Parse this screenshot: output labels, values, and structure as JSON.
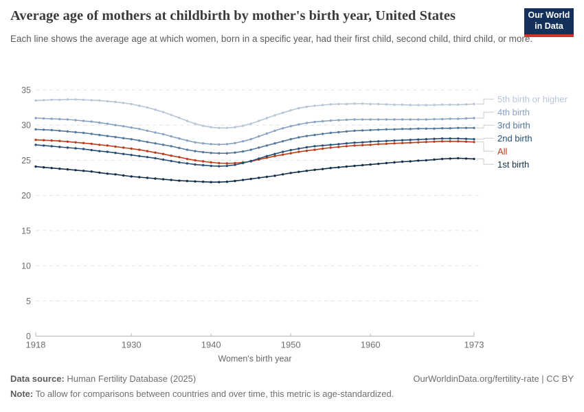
{
  "brand": {
    "logo_bg": "#12305a",
    "logo_bar": "#d0342c",
    "all_series_red": "#bc3c19"
  },
  "header": {
    "logo": {
      "line1": "Our World",
      "line2": "in Data"
    }
  },
  "chart_data": {
    "type": "line",
    "title": "Average age of mothers at childbirth by mother's birth year, United States",
    "subtitle": "Each line shows the average age at which women, born in a specific year, had their first child, second child, third child, or more.",
    "xlabel": "Women's birth year",
    "ylim": [
      0,
      35
    ],
    "yticks": [
      0,
      5,
      10,
      15,
      20,
      25,
      30,
      35
    ],
    "xticks": [
      1918,
      1930,
      1940,
      1950,
      1960,
      1973
    ],
    "grid": "horizontal-dashed",
    "legend_position": "right",
    "markers": true,
    "x": [
      1918,
      1919,
      1920,
      1921,
      1922,
      1923,
      1924,
      1925,
      1926,
      1927,
      1928,
      1929,
      1930,
      1931,
      1932,
      1933,
      1934,
      1935,
      1936,
      1937,
      1938,
      1939,
      1940,
      1941,
      1942,
      1943,
      1944,
      1945,
      1946,
      1947,
      1948,
      1949,
      1950,
      1951,
      1952,
      1953,
      1954,
      1955,
      1956,
      1957,
      1958,
      1959,
      1960,
      1961,
      1962,
      1963,
      1964,
      1965,
      1966,
      1967,
      1968,
      1969,
      1970,
      1971,
      1972,
      1973
    ],
    "series": [
      {
        "name": "5th birth or higher",
        "color": "#b8c5d9",
        "values": [
          33.5,
          33.55,
          33.6,
          33.6,
          33.65,
          33.65,
          33.6,
          33.55,
          33.5,
          33.4,
          33.3,
          33.15,
          33.0,
          32.75,
          32.5,
          32.2,
          31.85,
          31.45,
          31.05,
          30.6,
          30.2,
          29.9,
          29.7,
          29.6,
          29.6,
          29.7,
          29.9,
          30.2,
          30.6,
          31.0,
          31.4,
          31.75,
          32.1,
          32.4,
          32.6,
          32.75,
          32.85,
          32.95,
          33.0,
          33.0,
          33.05,
          33.05,
          33.0,
          33.0,
          32.95,
          32.9,
          32.9,
          32.85,
          32.85,
          32.85,
          32.85,
          32.9,
          32.9,
          32.9,
          32.95,
          33.0
        ]
      },
      {
        "name": "4th birth",
        "color": "#8aa3c2",
        "values": [
          31.0,
          30.95,
          30.9,
          30.85,
          30.8,
          30.7,
          30.6,
          30.5,
          30.35,
          30.2,
          30.0,
          29.85,
          29.65,
          29.45,
          29.2,
          28.95,
          28.7,
          28.4,
          28.1,
          27.8,
          27.55,
          27.4,
          27.3,
          27.25,
          27.3,
          27.45,
          27.7,
          28.0,
          28.4,
          28.8,
          29.2,
          29.55,
          29.85,
          30.1,
          30.3,
          30.45,
          30.55,
          30.65,
          30.7,
          30.75,
          30.8,
          30.8,
          30.8,
          30.8,
          30.8,
          30.8,
          30.8,
          30.8,
          30.8,
          30.8,
          30.85,
          30.85,
          30.9,
          30.9,
          30.95,
          31.0
        ]
      },
      {
        "name": "3rd birth",
        "color": "#54779e",
        "values": [
          29.4,
          29.35,
          29.3,
          29.2,
          29.1,
          29.0,
          28.9,
          28.75,
          28.6,
          28.45,
          28.3,
          28.15,
          28.0,
          27.8,
          27.6,
          27.4,
          27.2,
          27.0,
          26.75,
          26.5,
          26.3,
          26.15,
          26.05,
          26.0,
          26.0,
          26.1,
          26.25,
          26.5,
          26.8,
          27.1,
          27.4,
          27.7,
          28.0,
          28.25,
          28.45,
          28.6,
          28.75,
          28.9,
          29.0,
          29.1,
          29.2,
          29.25,
          29.3,
          29.35,
          29.4,
          29.4,
          29.45,
          29.45,
          29.5,
          29.5,
          29.5,
          29.55,
          29.55,
          29.6,
          29.6,
          29.6
        ]
      },
      {
        "name": "All",
        "color": "#bc3c19",
        "values": [
          27.9,
          27.85,
          27.8,
          27.75,
          27.65,
          27.55,
          27.45,
          27.35,
          27.2,
          27.1,
          26.95,
          26.8,
          26.65,
          26.5,
          26.3,
          26.1,
          25.9,
          25.65,
          25.45,
          25.2,
          25.0,
          24.85,
          24.7,
          24.6,
          24.55,
          24.6,
          24.7,
          24.85,
          25.1,
          25.35,
          25.6,
          25.8,
          26.0,
          26.2,
          26.35,
          26.5,
          26.65,
          26.8,
          26.9,
          27.0,
          27.1,
          27.15,
          27.2,
          27.3,
          27.35,
          27.4,
          27.45,
          27.5,
          27.55,
          27.6,
          27.65,
          27.7,
          27.7,
          27.7,
          27.65,
          27.6
        ]
      },
      {
        "name": "2nd birth",
        "color": "#254e77",
        "values": [
          27.2,
          27.1,
          27.0,
          26.9,
          26.8,
          26.7,
          26.6,
          26.45,
          26.3,
          26.2,
          26.05,
          25.9,
          25.75,
          25.6,
          25.45,
          25.3,
          25.1,
          24.9,
          24.7,
          24.55,
          24.4,
          24.3,
          24.2,
          24.15,
          24.2,
          24.35,
          24.6,
          24.9,
          25.25,
          25.6,
          25.9,
          26.2,
          26.45,
          26.65,
          26.85,
          27.0,
          27.1,
          27.2,
          27.3,
          27.4,
          27.5,
          27.55,
          27.65,
          27.7,
          27.75,
          27.8,
          27.85,
          27.9,
          27.95,
          28.0,
          28.05,
          28.1,
          28.1,
          28.1,
          28.05,
          28.0
        ]
      },
      {
        "name": "1st birth",
        "color": "#142f4c",
        "values": [
          24.1,
          24.0,
          23.9,
          23.8,
          23.7,
          23.6,
          23.5,
          23.4,
          23.25,
          23.1,
          23.0,
          22.85,
          22.7,
          22.6,
          22.5,
          22.4,
          22.3,
          22.2,
          22.1,
          22.05,
          22.0,
          21.95,
          21.9,
          21.9,
          21.95,
          22.05,
          22.2,
          22.35,
          22.5,
          22.65,
          22.8,
          23.0,
          23.2,
          23.35,
          23.5,
          23.65,
          23.75,
          23.9,
          24.0,
          24.1,
          24.2,
          24.3,
          24.4,
          24.5,
          24.6,
          24.7,
          24.8,
          24.85,
          24.95,
          25.0,
          25.1,
          25.2,
          25.25,
          25.3,
          25.25,
          25.2
        ]
      }
    ]
  },
  "footer": {
    "source_label": "Data source:",
    "source_text": " Human Fertility Database (2025)",
    "note_label": "Note:",
    "note_text": " To allow for comparisons between countries and over time, this metric is age-standardized.",
    "attribution": "OurWorldinData.org/fertility-rate | CC BY"
  }
}
